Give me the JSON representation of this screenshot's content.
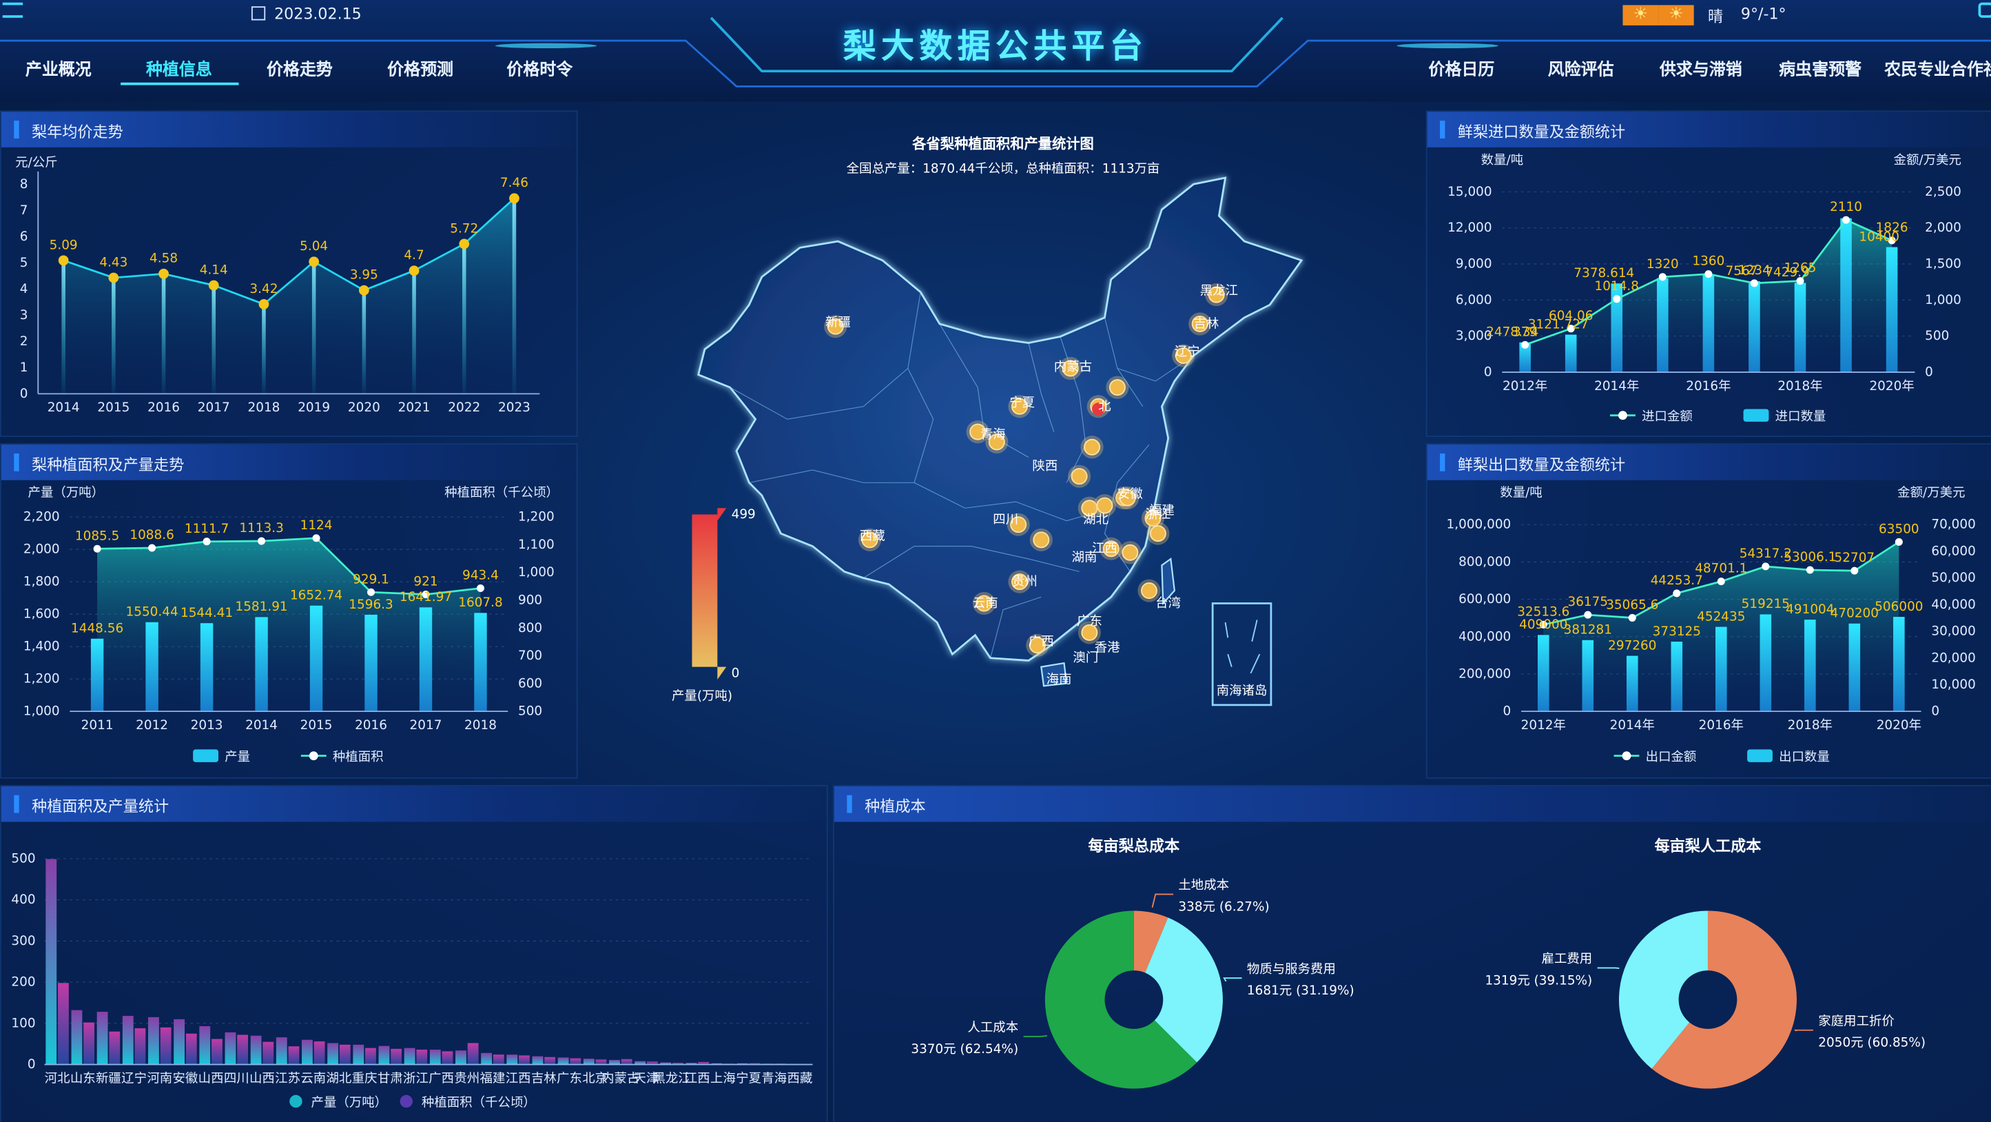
{
  "header": {
    "title": "梨大数据公共平台",
    "date": "2023.02.15",
    "weather_text": "晴",
    "temperature": "9°/-1°",
    "nav_left": [
      "产业概况",
      "种植信息",
      "价格走势",
      "价格预测",
      "价格时令"
    ],
    "nav_right": [
      "价格日历",
      "风险评估",
      "供求与滞销",
      "病虫害预警",
      "农民专业合作社"
    ],
    "active_nav": "种植信息"
  },
  "colors": {
    "accent": "#3fe9ff",
    "line": "#1fd8f0",
    "point": "#f5c518",
    "bar": "#22c8f0",
    "label": "#f5c518"
  },
  "panels": {
    "avg_price": "梨年均价走势",
    "area_prod": "梨种植面积及产量走势",
    "province_stats": "种植面积及产量统计",
    "import": "鲜梨进口数量及金额统计",
    "export": "鲜梨出口数量及金额统计",
    "cost": "种植成本"
  },
  "map": {
    "title": "各省梨种植面积和产量统计图",
    "subtitle": "全国总产量：1870.44千公顷，总种植面积：1113万亩",
    "legend_max": "499",
    "legend_min": "0",
    "legend_label": "产量(万吨)",
    "nanhai_label": "南海诸岛",
    "labels": [
      "新疆",
      "西藏",
      "内蒙古",
      "黑龙江",
      "吉林",
      "辽宁",
      "北",
      "宁夏",
      "青海",
      "陕西",
      "四川",
      "湖北",
      "湖南",
      "安徽",
      "浙江",
      "贵州",
      "云南",
      "广西",
      "广东",
      "澳门",
      "香港",
      "海南",
      "台湾",
      "江西",
      "福建"
    ]
  },
  "chart_data": [
    {
      "id": "avg_price",
      "type": "line",
      "ylabel": "元/公斤",
      "x": [
        "2014",
        "2015",
        "2016",
        "2017",
        "2018",
        "2019",
        "2020",
        "2021",
        "2022",
        "2023"
      ],
      "values": [
        5.09,
        4.43,
        4.58,
        4.14,
        3.42,
        5.04,
        3.95,
        4.7,
        5.72,
        7.46
      ],
      "ylim": [
        0,
        8
      ],
      "yticks": [
        "0",
        "1",
        "2",
        "3",
        "4",
        "5",
        "6",
        "7",
        "8"
      ]
    },
    {
      "id": "area_prod",
      "type": "bar",
      "ylabel_left": "产量（万吨）",
      "ylabel_right": "种植面积（千公顷）",
      "x": [
        "2011",
        "2012",
        "2013",
        "2014",
        "2015",
        "2016",
        "2017",
        "2018"
      ],
      "series": [
        {
          "name": "产量",
          "type": "bar",
          "values": [
            1448.56,
            1550.44,
            1544.41,
            1581.91,
            1652.74,
            1596.3,
            1641.97,
            1607.8
          ],
          "labels": [
            "1448.56",
            "1550.44",
            "1544.41",
            "1581.91",
            "1652.74",
            "1596.3",
            "1641.97",
            "1607.8"
          ]
        },
        {
          "name": "种植面积",
          "type": "line",
          "values": [
            1085.5,
            1088.6,
            1111.7,
            1113.3,
            1124,
            929.1,
            921,
            943.4
          ],
          "labels": [
            "1085.5",
            "1088.6",
            "1111.7",
            "1113.3",
            "1124",
            "929.1",
            "921",
            "943.4"
          ]
        }
      ],
      "ylim_left": [
        1000,
        2200
      ],
      "ylim_right": [
        500,
        1200
      ],
      "yticks_left": [
        "1,000",
        "1,200",
        "1,400",
        "1,600",
        "1,800",
        "2,000",
        "2,200"
      ],
      "yticks_right": [
        "500",
        "600",
        "700",
        "800",
        "900",
        "1,000",
        "1,100",
        "1,200"
      ]
    },
    {
      "id": "province_stats",
      "type": "bar",
      "categories": [
        "河北",
        "山东",
        "新疆",
        "辽宁",
        "河南",
        "安徽",
        "山西",
        "四川",
        "山西",
        "江苏",
        "云南",
        "湖北",
        "重庆",
        "甘肃",
        "浙江",
        "广西",
        "贵州",
        "福建",
        "江西",
        "吉林",
        "广东",
        "北京",
        "内蒙古",
        "天津",
        "黑龙江",
        "江西",
        "上海",
        "宁夏",
        "青海",
        "西藏"
      ],
      "series": [
        {
          "name": "产量（万吨）",
          "values": [
            499,
            132,
            128,
            118,
            115,
            110,
            93,
            78,
            70,
            66,
            60,
            52,
            48,
            45,
            40,
            36,
            34,
            28,
            24,
            20,
            17,
            14,
            11,
            8,
            5,
            4,
            3,
            3,
            2,
            1
          ]
        },
        {
          "name": "种植面积（千公顷）",
          "values": [
            198,
            102,
            80,
            88,
            90,
            75,
            62,
            72,
            55,
            44,
            56,
            48,
            40,
            38,
            36,
            32,
            52,
            24,
            22,
            18,
            15,
            12,
            13,
            7,
            4,
            6,
            2,
            3,
            2,
            1
          ]
        }
      ],
      "ylim": [
        0,
        500
      ],
      "yticks": [
        "0",
        "100",
        "200",
        "300",
        "400",
        "500"
      ]
    },
    {
      "id": "import",
      "type": "bar",
      "ylabel_left": "数量/吨",
      "ylabel_right": "金额/万美元",
      "x": [
        "2012年",
        "2013年",
        "2014年",
        "2015年",
        "2016年",
        "2017年",
        "2018年",
        "2019年",
        "2020年"
      ],
      "xticks": [
        "2012年",
        "2014年",
        "2016年",
        "2018年",
        "2020年"
      ],
      "series": [
        {
          "name": "进口数量",
          "type": "bar",
          "values": [
            2478.34,
            3121.727,
            7378.614,
            7820,
            8150,
            7567,
            7430,
            12800,
            10400
          ],
          "labels": [
            "2478.34",
            "3121.727",
            "7378.614",
            "",
            "",
            "7567",
            "7429.9",
            "",
            "10400"
          ]
        },
        {
          "name": "进口金额",
          "type": "line",
          "values": [
            379,
            604.06,
            1014.8,
            1320,
            1360,
            1234,
            1265,
            2110,
            1826
          ],
          "labels": [
            "379",
            "604.06",
            "1014.8",
            "1320",
            "1360",
            "1234",
            "1265",
            "2110",
            "1826"
          ]
        }
      ],
      "ylim_left": [
        0,
        15000
      ],
      "ylim_right": [
        0,
        2500
      ],
      "yticks_left": [
        "0",
        "3,000",
        "6,000",
        "9,000",
        "12,000",
        "15,000"
      ],
      "yticks_right": [
        "0",
        "500",
        "1,000",
        "1,500",
        "2,000",
        "2,500"
      ]
    },
    {
      "id": "export",
      "type": "bar",
      "ylabel_left": "数量/吨",
      "ylabel_right": "金额/万美元",
      "x": [
        "2012年",
        "2013年",
        "2014年",
        "2015年",
        "2016年",
        "2017年",
        "2018年",
        "2019年",
        "2020年"
      ],
      "xticks": [
        "2012年",
        "2014年",
        "2016年",
        "2018年",
        "2020年"
      ],
      "series": [
        {
          "name": "出口数量",
          "type": "bar",
          "values": [
            409000,
            381281,
            297260,
            373125,
            452435,
            519215,
            491004,
            470200,
            506000
          ],
          "labels": [
            "409000",
            "381281",
            "297260",
            "373125",
            "452435",
            "519215",
            "491004",
            "470200",
            "506000"
          ]
        },
        {
          "name": "出口金额",
          "type": "line",
          "values": [
            32513.6,
            36175,
            35065.6,
            44253.7,
            48701.1,
            54317.2,
            53006.1,
            52707,
            63500
          ],
          "labels": [
            "32513.6",
            "36175",
            "35065.6",
            "44253.7",
            "48701.1",
            "54317.2",
            "53006.1",
            "52707",
            "63500"
          ]
        }
      ],
      "ylim_left": [
        0,
        1000000
      ],
      "ylim_right": [
        0,
        70000
      ],
      "yticks_left": [
        "0",
        "200,000",
        "400,000",
        "600,000",
        "800,000",
        "1,000,000"
      ],
      "yticks_right": [
        "0",
        "10,000",
        "20,000",
        "30,000",
        "40,000",
        "50,000",
        "60,000",
        "70,000"
      ]
    },
    {
      "id": "total_cost",
      "type": "pie",
      "title": "每亩梨总成本",
      "slices": [
        {
          "name": "土地成本",
          "value": 338,
          "label": "338元 (6.27%)",
          "color": "#e8825a"
        },
        {
          "name": "物质与服务费用",
          "value": 1681,
          "label": "1681元 (31.19%)",
          "color": "#7df3fb"
        },
        {
          "name": "人工成本",
          "value": 3370,
          "label": "3370元 (62.54%)",
          "color": "#1ea84a"
        }
      ]
    },
    {
      "id": "labor_cost",
      "type": "pie",
      "title": "每亩梨人工成本",
      "slices": [
        {
          "name": "家庭用工折价",
          "value": 2050,
          "label": "2050元 (60.85%)",
          "color": "#e8825a"
        },
        {
          "name": "雇工费用",
          "value": 1319,
          "label": "1319元 (39.15%)",
          "color": "#7df3fb"
        }
      ]
    }
  ]
}
